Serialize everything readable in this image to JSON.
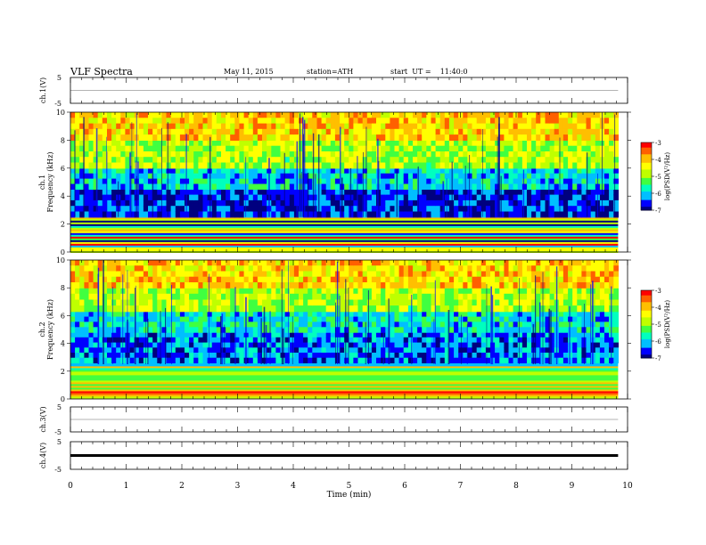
{
  "header": {
    "title": "VLF Spectra",
    "date": "May 11, 2015",
    "station": "station=ATH",
    "start": "start  UT =    11:40:0"
  },
  "chart_data": [
    {
      "type": "line",
      "name": "ch1-voltage",
      "ylabel": "ch.1(V)",
      "ylim": [
        -5,
        5
      ],
      "yticks": [
        "5",
        "-5"
      ],
      "xlim": [
        0,
        10
      ],
      "baseline": 0,
      "color": "#000000"
    },
    {
      "type": "heatmap",
      "name": "ch1-spectrogram",
      "ylabel": "ch.1\nFrequency  (kHz)",
      "ylim": [
        0,
        10
      ],
      "yticks": [
        "0",
        "2",
        "4",
        "6",
        "8",
        "10"
      ],
      "xlim": [
        0,
        10
      ],
      "data_xmax": 9.83,
      "colorbar": {
        "label": "log(PSD(V²/Hz)",
        "range": [
          -7,
          -3
        ],
        "ticks": [
          "-3",
          "-4",
          "-5",
          "-6",
          "-7"
        ]
      },
      "bands": [
        {
          "from": 0,
          "to": 2.5,
          "level": "mixed-horizontal-lines"
        },
        {
          "from": 2.5,
          "to": 4.5,
          "level": -6.6
        },
        {
          "from": 4.5,
          "to": 6,
          "level": -5.9
        },
        {
          "from": 6,
          "to": 8,
          "level": -4.8
        },
        {
          "from": 8,
          "to": 10,
          "level": -4.1
        }
      ]
    },
    {
      "type": "heatmap",
      "name": "ch2-spectrogram",
      "ylabel": "ch.2\nFrequency  (kHz)",
      "ylim": [
        0,
        10
      ],
      "yticks": [
        "0",
        "2",
        "4",
        "6",
        "8",
        "10"
      ],
      "xlim": [
        0,
        10
      ],
      "data_xmax": 9.83,
      "colorbar": {
        "label": "log(PSD(V²/Hz)",
        "range": [
          -7,
          -3
        ],
        "ticks": [
          "-3",
          "-4",
          "-5",
          "-6",
          "-7"
        ]
      },
      "bands": [
        {
          "from": 0,
          "to": 2.6,
          "level": "mixed-horizontal-lines"
        },
        {
          "from": 2.6,
          "to": 4.8,
          "level": -6.3
        },
        {
          "from": 4.8,
          "to": 6.3,
          "level": -5.8
        },
        {
          "from": 6.3,
          "to": 8,
          "level": -4.8
        },
        {
          "from": 8,
          "to": 10,
          "level": -4.1
        }
      ]
    },
    {
      "type": "line",
      "name": "ch3-voltage",
      "ylabel": "ch.3(V)",
      "ylim": [
        -5,
        5
      ],
      "yticks": [
        "5",
        "-5"
      ],
      "xlim": [
        0,
        10
      ],
      "baseline": 0,
      "color": "#000000"
    },
    {
      "type": "line",
      "name": "ch4-voltage",
      "ylabel": "ch.4(V)",
      "ylim": [
        -5,
        5
      ],
      "yticks": [
        "5",
        "-5"
      ],
      "xlim": [
        0,
        10
      ],
      "baseline": 0,
      "color": "#000000"
    }
  ],
  "xaxis": {
    "label": "Time  (min)",
    "ticks": [
      "0",
      "1",
      "2",
      "3",
      "4",
      "5",
      "6",
      "7",
      "8",
      "9",
      "10"
    ]
  },
  "colors": {
    "scale": [
      "#00007f",
      "#0000ff",
      "#00bfff",
      "#00ffbf",
      "#40ff40",
      "#bfff00",
      "#ffff00",
      "#ffbf00",
      "#ff6000",
      "#ff0000",
      "#ffffff"
    ]
  }
}
